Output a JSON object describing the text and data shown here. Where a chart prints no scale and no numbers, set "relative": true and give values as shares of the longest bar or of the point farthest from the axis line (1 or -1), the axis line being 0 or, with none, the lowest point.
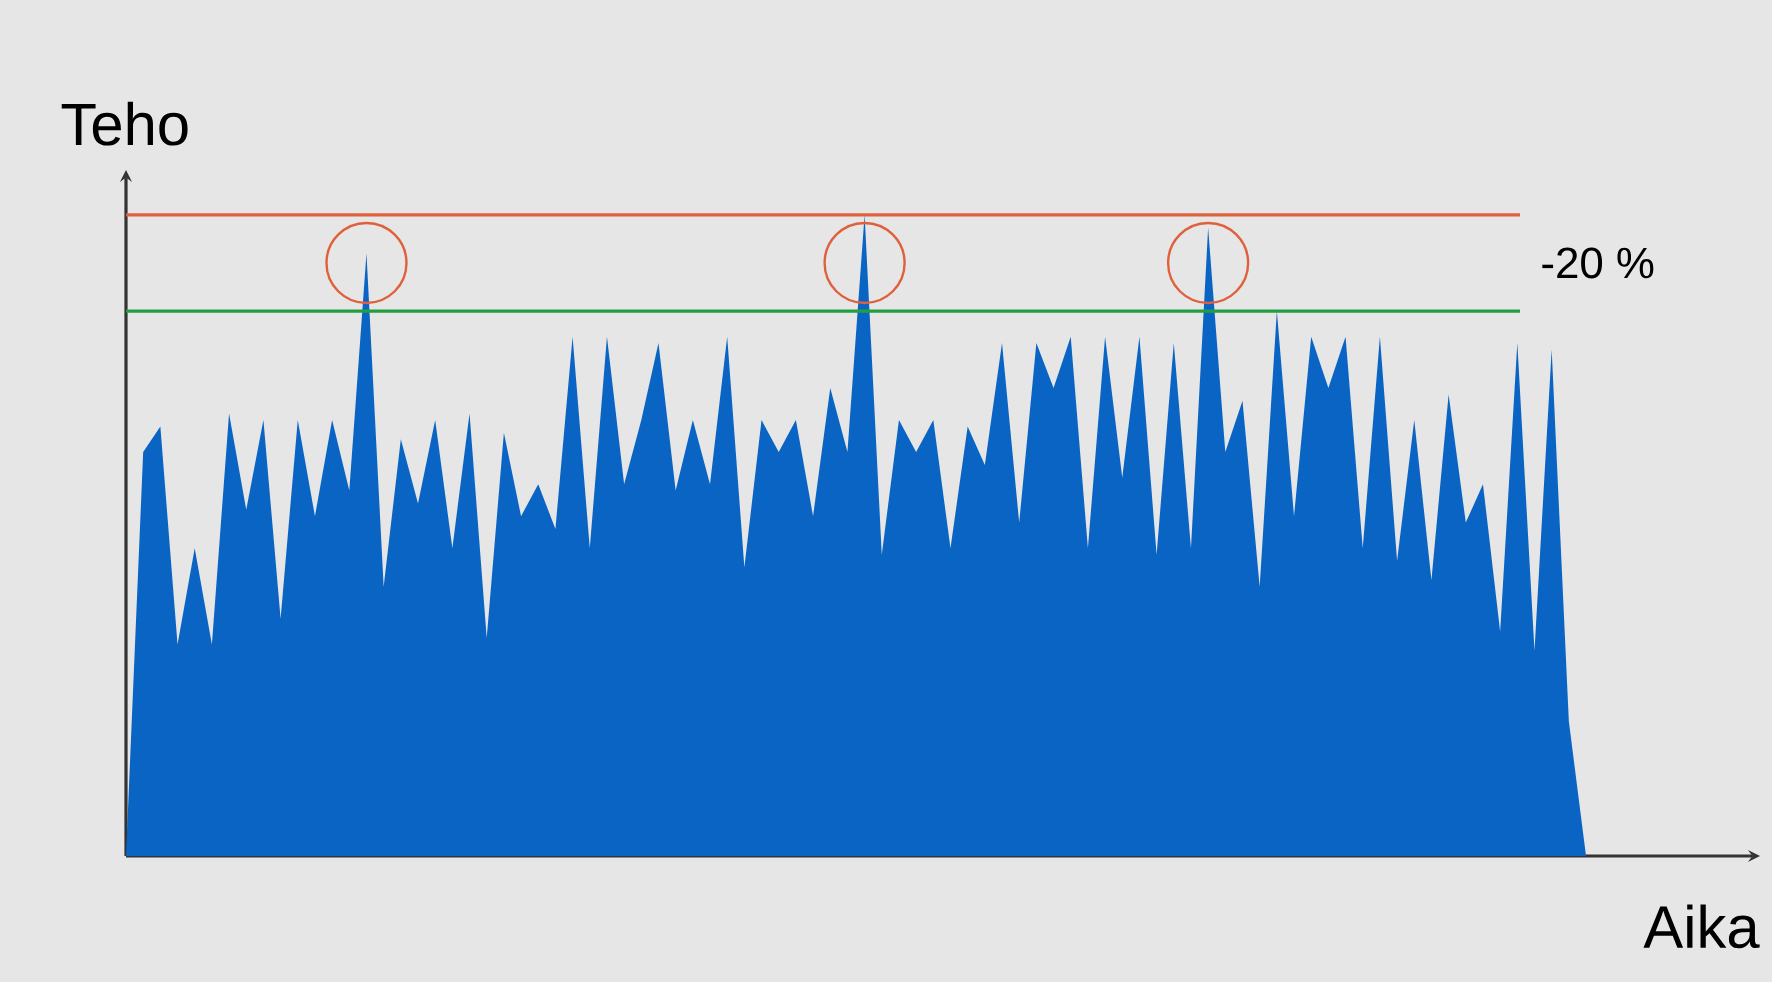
{
  "chart_data": {
    "type": "area",
    "relative": true,
    "xlabel": "Aika",
    "ylabel": "Teho",
    "categories": [
      null,
      null,
      null,
      null,
      null,
      null,
      null,
      null,
      null,
      null,
      null,
      null,
      null,
      null,
      null,
      null,
      null,
      null,
      null,
      null,
      null,
      null,
      null,
      null,
      null,
      null,
      null,
      null,
      null,
      null,
      null,
      null,
      null,
      null,
      null,
      null,
      null,
      null,
      null,
      null,
      null,
      null,
      null,
      null,
      null,
      null,
      null,
      null,
      null,
      null,
      null,
      null,
      null,
      null,
      null,
      null,
      null,
      null,
      null,
      null,
      null,
      null,
      null,
      null,
      null,
      null,
      null,
      null,
      null,
      null,
      null,
      null,
      null,
      null,
      null,
      null,
      null,
      null,
      null,
      null,
      null,
      null,
      null,
      null,
      null,
      null
    ],
    "values": [
      0,
      0.63,
      0.67,
      0.33,
      0.48,
      0.33,
      0.69,
      0.54,
      0.68,
      0.37,
      0.68,
      0.53,
      0.68,
      0.57,
      0.94,
      0.42,
      0.65,
      0.55,
      0.68,
      0.48,
      0.69,
      0.34,
      0.66,
      0.53,
      0.58,
      0.51,
      0.81,
      0.48,
      0.81,
      0.58,
      0.68,
      0.8,
      0.57,
      0.68,
      0.58,
      0.81,
      0.45,
      0.68,
      0.63,
      0.68,
      0.53,
      0.73,
      0.63,
      1,
      0.47,
      0.68,
      0.63,
      0.68,
      0.48,
      0.67,
      0.61,
      0.8,
      0.52,
      0.8,
      0.73,
      0.81,
      0.48,
      0.81,
      0.59,
      0.81,
      0.47,
      0.8,
      0.48,
      0.98,
      0.63,
      0.71,
      0.42,
      0.85,
      0.53,
      0.81,
      0.73,
      0.81,
      0.48,
      0.81,
      0.46,
      0.68,
      0.43,
      0.72,
      0.52,
      0.58,
      0.35,
      0.8,
      0.32,
      0.79,
      0.21,
      0
    ],
    "color": "#0a64c4",
    "ref_lines": [
      {
        "axis": "y",
        "value": 1.0,
        "color": "#e0603c"
      },
      {
        "axis": "y",
        "value": 0.85,
        "color": "#22a040"
      }
    ],
    "annotations": [
      "-20 %"
    ]
  }
}
